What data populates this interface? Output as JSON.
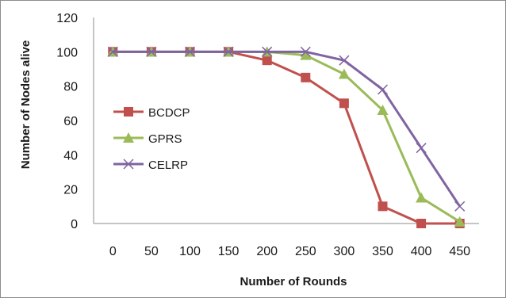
{
  "chart_data": {
    "type": "line",
    "title": "",
    "xlabel": "Number of Rounds",
    "ylabel": "Number of Nodes alive",
    "x": [
      0,
      50,
      100,
      150,
      200,
      250,
      300,
      350,
      400,
      450
    ],
    "ylim": [
      0,
      120
    ],
    "yticks": [
      0,
      20,
      40,
      60,
      80,
      100,
      120
    ],
    "grid": false,
    "legend_position": "left",
    "series": [
      {
        "name": "BCDCP",
        "color": "#c0504d",
        "marker": "square",
        "values": [
          100,
          100,
          100,
          100,
          95,
          85,
          70,
          10,
          0,
          0
        ]
      },
      {
        "name": "GPRS",
        "color": "#9bbb59",
        "marker": "triangle",
        "values": [
          100,
          100,
          100,
          100,
          100,
          98,
          87,
          66,
          15,
          1
        ]
      },
      {
        "name": "CELRP",
        "color": "#8064a2",
        "marker": "x",
        "values": [
          100,
          100,
          100,
          100,
          100,
          100,
          95,
          78,
          44,
          10
        ]
      }
    ]
  }
}
